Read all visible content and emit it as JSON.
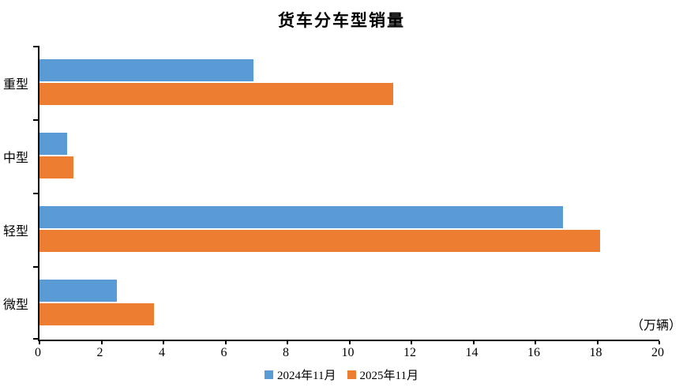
{
  "title": "货车分车型销量",
  "unit_label": "（万辆）",
  "chart_data": {
    "type": "bar",
    "orientation": "horizontal",
    "title": "货车分车型销量",
    "xlabel": "（万辆）",
    "ylabel": "",
    "categories": [
      "重型",
      "中型",
      "轻型",
      "微型"
    ],
    "series": [
      {
        "name": "2024年11月",
        "color": "#5B9BD5",
        "values": [
          6.9,
          0.9,
          16.9,
          2.5
        ]
      },
      {
        "name": "2025年11月",
        "color": "#ED7D31",
        "values": [
          11.4,
          1.1,
          18.1,
          3.7
        ]
      }
    ],
    "xlim": [
      0,
      20
    ],
    "xticks": [
      0,
      2,
      4,
      6,
      8,
      10,
      12,
      14,
      16,
      18,
      20
    ],
    "grid": false,
    "legend_position": "bottom"
  }
}
